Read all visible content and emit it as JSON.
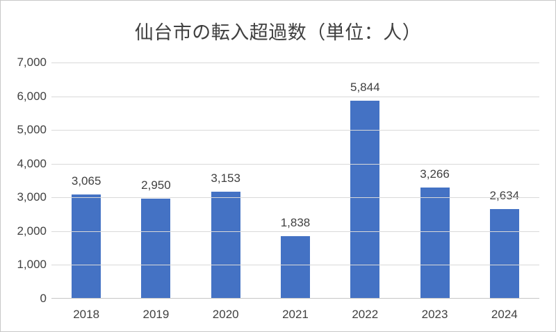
{
  "title": "仙台市の転入超過数（単位：人）",
  "colors": {
    "bar": "#4472C4",
    "gridline": "#D9D9D9",
    "axis_line": "#C6C6C6",
    "text": "#404040",
    "frame": "#C8C8C8",
    "background": "#FFFFFF"
  },
  "chart_data": {
    "type": "bar",
    "title": "仙台市の転入超過数（単位：人）",
    "categories": [
      "2018",
      "2019",
      "2020",
      "2021",
      "2022",
      "2023",
      "2024"
    ],
    "values": [
      3065,
      2950,
      3153,
      1838,
      5844,
      3266,
      2634
    ],
    "value_labels": [
      "3,065",
      "2,950",
      "3,153",
      "1,838",
      "5,844",
      "3,266",
      "2,634"
    ],
    "xlabel": "",
    "ylabel": "",
    "ylim": [
      0,
      7000
    ],
    "ytick_step": 1000,
    "ytick_labels": [
      "0",
      "1,000",
      "2,000",
      "3,000",
      "4,000",
      "5,000",
      "6,000",
      "7,000"
    ],
    "grid": true,
    "legend": "none"
  }
}
